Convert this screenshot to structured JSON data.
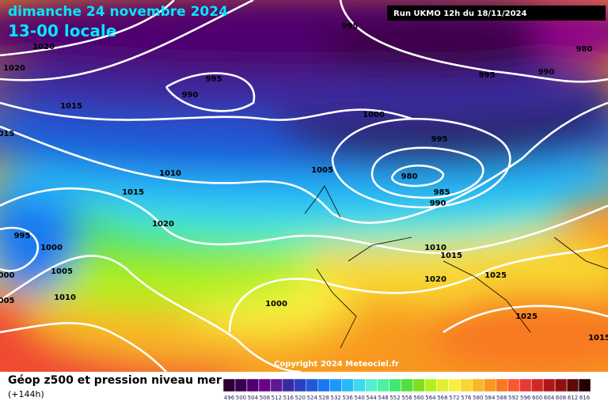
{
  "header": {
    "title": "dimanche 24 novembre 2024",
    "subtitle": "13-00 locale",
    "run": "Run UKMO 12h du 18/11/2024"
  },
  "copyright": "Copyright 2024 Meteociel.fr",
  "isobar_labels": [
    "995",
    "1020",
    "1020",
    "995",
    "990",
    "995",
    "990",
    "980",
    "1015",
    "1000",
    "015",
    "995",
    "1010",
    "1005",
    "980",
    "985",
    "1015",
    "990",
    "1020",
    "995",
    "1000",
    "1010",
    "1015",
    "1005",
    "000",
    "1020",
    "1025",
    "1010",
    "1000",
    "005",
    "1025",
    "1015"
  ],
  "legend": {
    "title": "Géop z500 et pression niveau mer",
    "lead": "(+144h)",
    "values": [
      496,
      500,
      504,
      508,
      512,
      516,
      520,
      524,
      528,
      532,
      536,
      540,
      544,
      548,
      552,
      556,
      560,
      564,
      568,
      572,
      576,
      580,
      584,
      588,
      592,
      596,
      600,
      604,
      608,
      612,
      616
    ],
    "colors": [
      "#2a0030",
      "#3c0050",
      "#50006e",
      "#6a008a",
      "#5a1a90",
      "#3a2aa0",
      "#2a40c0",
      "#1e5ad8",
      "#1a78f0",
      "#1a98f8",
      "#28b8f8",
      "#40d8f0",
      "#50f0d0",
      "#50f0a0",
      "#40e870",
      "#50e040",
      "#80e020",
      "#b0f020",
      "#e0f030",
      "#f8f040",
      "#f8d830",
      "#f8b828",
      "#f89820",
      "#f87820",
      "#f85830",
      "#e83838",
      "#d02828",
      "#b01818",
      "#901010",
      "#600808",
      "#200000"
    ]
  }
}
